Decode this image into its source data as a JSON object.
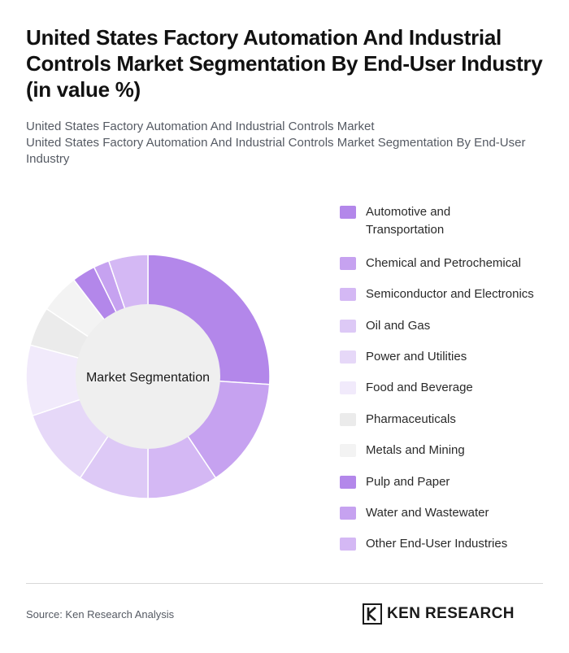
{
  "header": {
    "title": "United States Factory Automation And Industrial Controls Market Segmentation By End-User Industry (in value %)",
    "subtitle_line1": "United States Factory Automation And Industrial Controls Market",
    "subtitle_line2": "United States Factory Automation And Industrial Controls Market Segmentation By End-User Industry"
  },
  "chart_data": {
    "type": "pie",
    "variant": "donut",
    "center_label": "Market Segmentation",
    "legend_position": "right",
    "categories": [
      "Automotive and Transportation",
      "Chemical and Petrochemical",
      "Semiconductor and Electronics",
      "Oil and Gas",
      "Power and Utilities",
      "Food and Beverage",
      "Pharmaceuticals",
      "Metals and Mining",
      "Pulp and Paper",
      "Water and Wastewater",
      "Other End-User Industries"
    ],
    "values": [
      25,
      14,
      9,
      9,
      10,
      9,
      5,
      5,
      3,
      2,
      5
    ],
    "colors": [
      "#b387ea",
      "#c6a2f0",
      "#d4b8f4",
      "#ddc9f6",
      "#e6d8f8",
      "#f1eafb",
      "#ebebeb",
      "#f3f3f3",
      "#b387ea",
      "#c6a2f0",
      "#d4b8f4"
    ]
  },
  "footer": {
    "source": "Source: Ken Research Analysis",
    "brand": "KEN RESEARCH",
    "logo_icon": "ken-research-logo-icon"
  }
}
